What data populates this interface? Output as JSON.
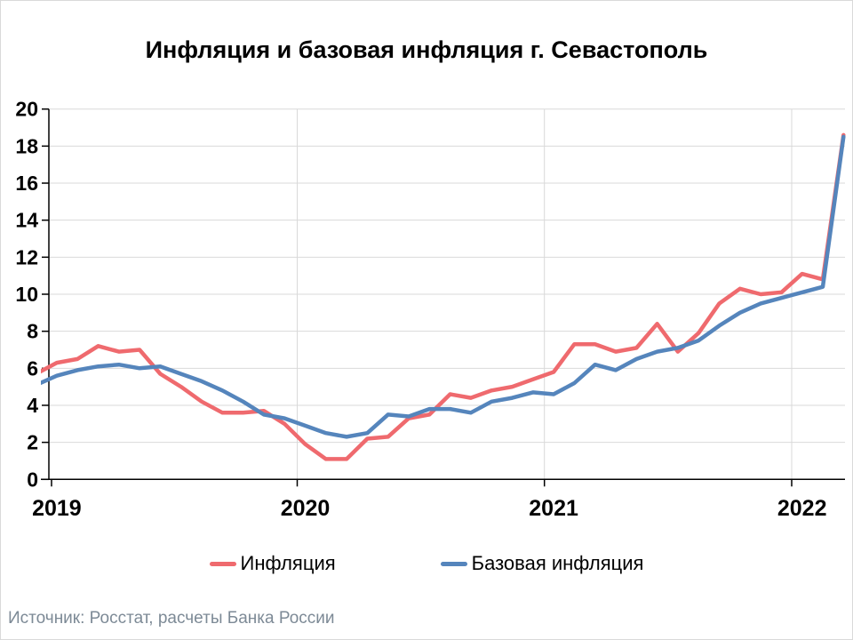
{
  "chart_data": {
    "type": "line",
    "title": "Инфляция и базовая инфляция г. Севастополь",
    "xlabel": "",
    "ylabel": "",
    "ylim": [
      0,
      20
    ],
    "ytick_step": 2,
    "grid": "horizontal gridlines + vertical year-boundary gridlines",
    "legend_position": "bottom",
    "x_axis_labels": [
      "2019",
      "2020",
      "2021",
      "2022"
    ],
    "x": [
      "2018-12",
      "2019-01",
      "2019-02",
      "2019-03",
      "2019-04",
      "2019-05",
      "2019-06",
      "2019-07",
      "2019-08",
      "2019-09",
      "2019-10",
      "2019-11",
      "2019-12",
      "2020-01",
      "2020-02",
      "2020-03",
      "2020-04",
      "2020-05",
      "2020-06",
      "2020-07",
      "2020-08",
      "2020-09",
      "2020-10",
      "2020-11",
      "2020-12",
      "2021-01",
      "2021-02",
      "2021-03",
      "2021-04",
      "2021-05",
      "2021-06",
      "2021-07",
      "2021-08",
      "2021-09",
      "2021-10",
      "2021-11",
      "2021-12",
      "2022-01",
      "2022-02",
      "2022-03"
    ],
    "series": [
      {
        "name": "Инфляция",
        "color": "#EF6A6E",
        "values": [
          5.7,
          6.3,
          6.5,
          7.2,
          6.9,
          7.0,
          5.7,
          5.0,
          4.2,
          3.6,
          3.6,
          3.7,
          3.0,
          1.9,
          1.1,
          1.1,
          2.2,
          2.3,
          3.3,
          3.5,
          4.6,
          4.4,
          4.8,
          5.0,
          5.4,
          5.8,
          7.3,
          7.3,
          6.9,
          7.1,
          8.4,
          6.9,
          7.9,
          9.5,
          10.3,
          10.0,
          10.1,
          11.1,
          10.8,
          18.6
        ]
      },
      {
        "name": "Базовая инфляция",
        "color": "#5585BC",
        "values": [
          5.1,
          5.6,
          5.9,
          6.1,
          6.2,
          6.0,
          6.1,
          5.7,
          5.3,
          4.8,
          4.2,
          3.5,
          3.3,
          2.9,
          2.5,
          2.3,
          2.5,
          3.5,
          3.4,
          3.8,
          3.8,
          3.6,
          4.2,
          4.4,
          4.7,
          4.6,
          5.2,
          6.2,
          5.9,
          6.5,
          6.9,
          7.1,
          7.5,
          8.3,
          9.0,
          9.5,
          9.8,
          10.1,
          10.4,
          18.5
        ]
      }
    ]
  },
  "footer": {
    "source": "Источник: Росстат, расчеты Банка России"
  }
}
